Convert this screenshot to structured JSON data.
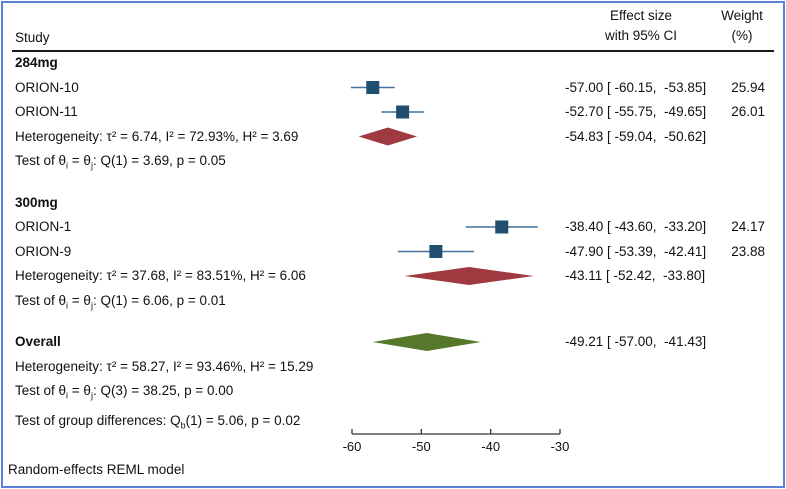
{
  "header": {
    "study": "Study",
    "effect_line1": "Effect size",
    "effect_line2": "with 95% CI",
    "weight_line1": "Weight",
    "weight_line2": "(%)"
  },
  "footer": {
    "note": "Random-effects REML model"
  },
  "chart_data": {
    "type": "forest",
    "axis": {
      "min": -60,
      "max": -30,
      "ticks": [
        -60,
        -50,
        -40,
        -30
      ]
    },
    "colors": {
      "study_marker": "#1f4e6e",
      "ci_line": "#41719c",
      "subgroup_diamond": "#9e3a40",
      "overall_diamond": "#55782a",
      "frame": "#5b82d8",
      "axis": "#333333"
    },
    "rows": [
      {
        "type": "group",
        "label": "284mg"
      },
      {
        "type": "study",
        "label": "ORION-10",
        "est": -57.0,
        "lo": -60.15,
        "hi": -53.85,
        "ci_text": "-57.00 [ -60.15,  -53.85]",
        "weight": "25.94"
      },
      {
        "type": "study",
        "label": "ORION-11",
        "est": -52.7,
        "lo": -55.75,
        "hi": -49.65,
        "ci_text": "-52.70 [ -55.75,  -49.65]",
        "weight": "26.01"
      },
      {
        "type": "summary",
        "label": "Heterogeneity: τ² = 6.74, I² = 72.93%, H² = 3.69",
        "est": -54.83,
        "lo": -59.04,
        "hi": -50.62,
        "ci_text": "-54.83 [ -59.04,  -50.62]",
        "diamond": "subgroup"
      },
      {
        "type": "text",
        "label": "Test of θ[i] = θ[j]: Q(1) = 3.69, p = 0.05"
      },
      {
        "type": "spacer",
        "h": 17
      },
      {
        "type": "group",
        "label": "300mg"
      },
      {
        "type": "study",
        "label": "ORION-1",
        "est": -38.4,
        "lo": -43.6,
        "hi": -33.2,
        "ci_text": "-38.40 [ -43.60,  -33.20]",
        "weight": "24.17"
      },
      {
        "type": "study",
        "label": "ORION-9",
        "est": -47.9,
        "lo": -53.39,
        "hi": -42.41,
        "ci_text": "-47.90 [ -53.39,  -42.41]",
        "weight": "23.88"
      },
      {
        "type": "summary",
        "label": "Heterogeneity: τ² = 37.68, I² = 83.51%, H² = 6.06",
        "est": -43.11,
        "lo": -52.42,
        "hi": -33.8,
        "ci_text": "-43.11 [ -52.42,  -33.80]",
        "diamond": "subgroup"
      },
      {
        "type": "text",
        "label": "Test of θ[i] = θ[j]: Q(1) = 6.06, p = 0.01"
      },
      {
        "type": "spacer",
        "h": 17
      },
      {
        "type": "summary",
        "label": "Overall",
        "bold": true,
        "est": -49.21,
        "lo": -57.0,
        "hi": -41.43,
        "ci_text": "-49.21 [ -57.00,  -41.43]",
        "diamond": "overall"
      },
      {
        "type": "text",
        "label": "Heterogeneity: τ² = 58.27, I² = 93.46%, H² = 15.29"
      },
      {
        "type": "text",
        "label": "Test of θ[i] = θ[j]: Q(3) = 38.25, p = 0.00"
      },
      {
        "type": "spacer",
        "h": 5
      },
      {
        "type": "text",
        "label": "Test of group differences: Q[b](1) = 5.06, p = 0.02"
      }
    ]
  }
}
